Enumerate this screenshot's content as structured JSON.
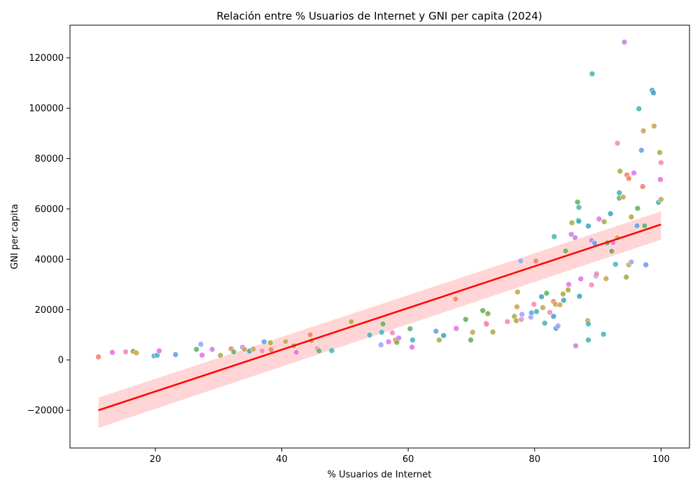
{
  "chart_data": {
    "type": "scatter",
    "title": "Relación entre % Usuarios de Internet y GNI per capita (2024)",
    "xlabel": "% Usuarios de Internet",
    "ylabel": "GNI per capita",
    "xlim": [
      6.5,
      104.5
    ],
    "ylim": [
      -35000,
      133000
    ],
    "xticks": [
      20,
      40,
      60,
      80,
      100
    ],
    "yticks": [
      -20000,
      0,
      20000,
      40000,
      60000,
      80000,
      100000,
      120000
    ],
    "grid": false,
    "regression": {
      "color": "#ff0000",
      "band_color": "#ffb3b3",
      "x": [
        11,
        100
      ],
      "y": [
        -20000,
        53800
      ],
      "band_lower": [
        -27000,
        47800
      ],
      "band_upper": [
        -15000,
        59000
      ]
    },
    "points": [
      {
        "x": 11.0,
        "y": 1200,
        "c": "#f07f5f"
      },
      {
        "x": 13.2,
        "y": 3000,
        "c": "#e56fe6"
      },
      {
        "x": 15.3,
        "y": 3200,
        "c": "#f587b3"
      },
      {
        "x": 16.5,
        "y": 3400,
        "c": "#7fa844"
      },
      {
        "x": 17.0,
        "y": 2800,
        "c": "#c8a24a"
      },
      {
        "x": 19.8,
        "y": 1600,
        "c": "#5e9fe8"
      },
      {
        "x": 20.3,
        "y": 1900,
        "c": "#40b5b0"
      },
      {
        "x": 20.6,
        "y": 3600,
        "c": "#e56fe6"
      },
      {
        "x": 23.2,
        "y": 2100,
        "c": "#5e9fe8"
      },
      {
        "x": 26.5,
        "y": 4200,
        "c": "#5db05e"
      },
      {
        "x": 27.2,
        "y": 6200,
        "c": "#9aa2f4"
      },
      {
        "x": 27.4,
        "y": 1900,
        "c": "#e56fe6"
      },
      {
        "x": 29.0,
        "y": 4200,
        "c": "#c67fe0"
      },
      {
        "x": 30.3,
        "y": 1800,
        "c": "#a8a83e"
      },
      {
        "x": 32.0,
        "y": 4400,
        "c": "#f07f5f"
      },
      {
        "x": 32.4,
        "y": 3200,
        "c": "#5db05e"
      },
      {
        "x": 33.8,
        "y": 5000,
        "c": "#c67fe0"
      },
      {
        "x": 34.1,
        "y": 4200,
        "c": "#c8a24a"
      },
      {
        "x": 34.9,
        "y": 3500,
        "c": "#40a0c0"
      },
      {
        "x": 35.5,
        "y": 4300,
        "c": "#c8a24a"
      },
      {
        "x": 36.9,
        "y": 3600,
        "c": "#f587b3"
      },
      {
        "x": 37.2,
        "y": 7200,
        "c": "#5e9fe8"
      },
      {
        "x": 38.2,
        "y": 6800,
        "c": "#a8a83e"
      },
      {
        "x": 38.3,
        "y": 4100,
        "c": "#f07f5f"
      },
      {
        "x": 40.6,
        "y": 7300,
        "c": "#c8a24a"
      },
      {
        "x": 41.9,
        "y": 5600,
        "c": "#a8a83e"
      },
      {
        "x": 42.3,
        "y": 3000,
        "c": "#e56fe6"
      },
      {
        "x": 44.5,
        "y": 10000,
        "c": "#f07f5f"
      },
      {
        "x": 44.7,
        "y": 7600,
        "c": "#c8a24a"
      },
      {
        "x": 45.6,
        "y": 4500,
        "c": "#f587b3"
      },
      {
        "x": 45.9,
        "y": 3600,
        "c": "#5db05e"
      },
      {
        "x": 47.9,
        "y": 3700,
        "c": "#40b5b0"
      },
      {
        "x": 51.0,
        "y": 15200,
        "c": "#a8a83e"
      },
      {
        "x": 53.9,
        "y": 9900,
        "c": "#40b5b0"
      },
      {
        "x": 55.7,
        "y": 6000,
        "c": "#9aa2f4"
      },
      {
        "x": 55.8,
        "y": 11000,
        "c": "#40b5b0"
      },
      {
        "x": 56.0,
        "y": 14300,
        "c": "#5db05e"
      },
      {
        "x": 56.9,
        "y": 7200,
        "c": "#e56fe6"
      },
      {
        "x": 57.5,
        "y": 10800,
        "c": "#f587b3"
      },
      {
        "x": 58.0,
        "y": 7900,
        "c": "#f07f5f"
      },
      {
        "x": 58.2,
        "y": 7000,
        "c": "#7fa844"
      },
      {
        "x": 58.5,
        "y": 8700,
        "c": "#c67fe0"
      },
      {
        "x": 60.3,
        "y": 12400,
        "c": "#5db05e"
      },
      {
        "x": 60.6,
        "y": 5100,
        "c": "#e56fe6"
      },
      {
        "x": 60.7,
        "y": 7900,
        "c": "#40b5b0"
      },
      {
        "x": 64.4,
        "y": 11400,
        "c": "#5e9fe8"
      },
      {
        "x": 64.9,
        "y": 7900,
        "c": "#a8a83e"
      },
      {
        "x": 65.6,
        "y": 9700,
        "c": "#40a0c0"
      },
      {
        "x": 67.5,
        "y": 24200,
        "c": "#f07f5f"
      },
      {
        "x": 67.6,
        "y": 12500,
        "c": "#e56fe6"
      },
      {
        "x": 69.1,
        "y": 16100,
        "c": "#5db05e"
      },
      {
        "x": 69.9,
        "y": 7900,
        "c": "#5db05e"
      },
      {
        "x": 70.2,
        "y": 11000,
        "c": "#c8a24a"
      },
      {
        "x": 71.8,
        "y": 19600,
        "c": "#5db05e"
      },
      {
        "x": 72.3,
        "y": 14500,
        "c": "#f07f5f"
      },
      {
        "x": 72.4,
        "y": 14200,
        "c": "#f587b3"
      },
      {
        "x": 72.6,
        "y": 18400,
        "c": "#7fa844"
      },
      {
        "x": 73.4,
        "y": 11100,
        "c": "#a8a83e"
      },
      {
        "x": 75.7,
        "y": 15200,
        "c": "#f587b3"
      },
      {
        "x": 76.8,
        "y": 17300,
        "c": "#a8a83e"
      },
      {
        "x": 77.1,
        "y": 15600,
        "c": "#a8a83e"
      },
      {
        "x": 77.2,
        "y": 21100,
        "c": "#c8a24a"
      },
      {
        "x": 77.3,
        "y": 27000,
        "c": "#c8a24a"
      },
      {
        "x": 77.8,
        "y": 39300,
        "c": "#9aa2f4"
      },
      {
        "x": 77.9,
        "y": 16100,
        "c": "#f587b3"
      },
      {
        "x": 78.0,
        "y": 18100,
        "c": "#9aa2f4"
      },
      {
        "x": 79.4,
        "y": 17000,
        "c": "#9aa2f4"
      },
      {
        "x": 79.5,
        "y": 18700,
        "c": "#5e9fe8"
      },
      {
        "x": 79.9,
        "y": 22100,
        "c": "#f587b3"
      },
      {
        "x": 80.2,
        "y": 39300,
        "c": "#f07f5f"
      },
      {
        "x": 80.3,
        "y": 19200,
        "c": "#40b5b0"
      },
      {
        "x": 81.1,
        "y": 25100,
        "c": "#40a0c0"
      },
      {
        "x": 81.3,
        "y": 20800,
        "c": "#c8a24a"
      },
      {
        "x": 81.6,
        "y": 14600,
        "c": "#40b5b0"
      },
      {
        "x": 81.9,
        "y": 26500,
        "c": "#5db05e"
      },
      {
        "x": 82.4,
        "y": 18900,
        "c": "#f587b3"
      },
      {
        "x": 83.0,
        "y": 17300,
        "c": "#40a0c0"
      },
      {
        "x": 83.0,
        "y": 23200,
        "c": "#f07f5f"
      },
      {
        "x": 83.1,
        "y": 49000,
        "c": "#40b5b0"
      },
      {
        "x": 83.3,
        "y": 22100,
        "c": "#c8a24a"
      },
      {
        "x": 83.4,
        "y": 12600,
        "c": "#40a0c0"
      },
      {
        "x": 83.7,
        "y": 13500,
        "c": "#9aa2f4"
      },
      {
        "x": 84.0,
        "y": 21900,
        "c": "#c8a24a"
      },
      {
        "x": 84.5,
        "y": 26200,
        "c": "#a8a83e"
      },
      {
        "x": 84.6,
        "y": 23700,
        "c": "#40a0c0"
      },
      {
        "x": 84.9,
        "y": 43300,
        "c": "#7fa844"
      },
      {
        "x": 85.3,
        "y": 27800,
        "c": "#a8a83e"
      },
      {
        "x": 85.4,
        "y": 30000,
        "c": "#e56fe6"
      },
      {
        "x": 85.8,
        "y": 49900,
        "c": "#c67fe0"
      },
      {
        "x": 85.9,
        "y": 54500,
        "c": "#a8a83e"
      },
      {
        "x": 86.4,
        "y": 48600,
        "c": "#c67fe0"
      },
      {
        "x": 86.5,
        "y": 5600,
        "c": "#c67fe0"
      },
      {
        "x": 86.8,
        "y": 62700,
        "c": "#5db05e"
      },
      {
        "x": 86.9,
        "y": 55400,
        "c": "#40a0c0"
      },
      {
        "x": 87.0,
        "y": 60600,
        "c": "#40b5b0"
      },
      {
        "x": 87.0,
        "y": 55100,
        "c": "#40b5b0"
      },
      {
        "x": 87.1,
        "y": 25300,
        "c": "#40a0c0"
      },
      {
        "x": 87.3,
        "y": 32200,
        "c": "#e56fe6"
      },
      {
        "x": 88.4,
        "y": 15600,
        "c": "#c8a24a"
      },
      {
        "x": 88.5,
        "y": 14300,
        "c": "#40b5b0"
      },
      {
        "x": 88.5,
        "y": 7900,
        "c": "#40b5b0"
      },
      {
        "x": 88.5,
        "y": 53200,
        "c": "#40a0c0"
      },
      {
        "x": 89.0,
        "y": 29800,
        "c": "#f587b3"
      },
      {
        "x": 89.0,
        "y": 47500,
        "c": "#c67fe0"
      },
      {
        "x": 89.1,
        "y": 113700,
        "c": "#40b5b0"
      },
      {
        "x": 89.5,
        "y": 46400,
        "c": "#5e9fe8"
      },
      {
        "x": 89.7,
        "y": 33400,
        "c": "#9aa2f4"
      },
      {
        "x": 89.8,
        "y": 34200,
        "c": "#f587b3"
      },
      {
        "x": 90.2,
        "y": 56000,
        "c": "#e56fe6"
      },
      {
        "x": 90.9,
        "y": 10200,
        "c": "#40b5b0"
      },
      {
        "x": 91.0,
        "y": 54900,
        "c": "#a8a83e"
      },
      {
        "x": 91.3,
        "y": 32300,
        "c": "#c8a24a"
      },
      {
        "x": 91.5,
        "y": 46500,
        "c": "#5db05e"
      },
      {
        "x": 92.0,
        "y": 58100,
        "c": "#40a0c0"
      },
      {
        "x": 92.1,
        "y": 43300,
        "c": "#9aa2f4"
      },
      {
        "x": 92.2,
        "y": 43200,
        "c": "#7fa844"
      },
      {
        "x": 92.4,
        "y": 46600,
        "c": "#e56fe6"
      },
      {
        "x": 92.8,
        "y": 38000,
        "c": "#40b5b0"
      },
      {
        "x": 93.1,
        "y": 86100,
        "c": "#f587b3"
      },
      {
        "x": 93.1,
        "y": 48500,
        "c": "#c8a24a"
      },
      {
        "x": 93.4,
        "y": 66400,
        "c": "#40b5b0"
      },
      {
        "x": 93.4,
        "y": 64300,
        "c": "#5db05e"
      },
      {
        "x": 93.5,
        "y": 75000,
        "c": "#a8a83e"
      },
      {
        "x": 94.0,
        "y": 64700,
        "c": "#c8a24a"
      },
      {
        "x": 94.2,
        "y": 126300,
        "c": "#c67fe0"
      },
      {
        "x": 94.5,
        "y": 32900,
        "c": "#a8a83e"
      },
      {
        "x": 94.6,
        "y": 73500,
        "c": "#f07f5f"
      },
      {
        "x": 94.9,
        "y": 72100,
        "c": "#f07f5f"
      },
      {
        "x": 94.9,
        "y": 37800,
        "c": "#c8a24a"
      },
      {
        "x": 95.3,
        "y": 56800,
        "c": "#a8a83e"
      },
      {
        "x": 95.3,
        "y": 38900,
        "c": "#9aa2f4"
      },
      {
        "x": 95.7,
        "y": 74300,
        "c": "#e56fe6"
      },
      {
        "x": 96.2,
        "y": 53300,
        "c": "#5e9fe8"
      },
      {
        "x": 96.3,
        "y": 60200,
        "c": "#5db05e"
      },
      {
        "x": 96.5,
        "y": 99800,
        "c": "#40b5b0"
      },
      {
        "x": 96.9,
        "y": 83300,
        "c": "#5e9fe8"
      },
      {
        "x": 97.1,
        "y": 68900,
        "c": "#f07f5f"
      },
      {
        "x": 97.2,
        "y": 91000,
        "c": "#c8a24a"
      },
      {
        "x": 97.4,
        "y": 53300,
        "c": "#5db05e"
      },
      {
        "x": 97.6,
        "y": 37800,
        "c": "#5e9fe8"
      },
      {
        "x": 98.6,
        "y": 107100,
        "c": "#40a0c0"
      },
      {
        "x": 98.8,
        "y": 106100,
        "c": "#40a0c0"
      },
      {
        "x": 98.9,
        "y": 92900,
        "c": "#c8a24a"
      },
      {
        "x": 99.6,
        "y": 62600,
        "c": "#40b5b0"
      },
      {
        "x": 99.8,
        "y": 82400,
        "c": "#a8a83e"
      },
      {
        "x": 99.9,
        "y": 71700,
        "c": "#e56fe6"
      },
      {
        "x": 100.0,
        "y": 78400,
        "c": "#f587b3"
      },
      {
        "x": 100.0,
        "y": 63800,
        "c": "#c8a24a"
      }
    ]
  }
}
